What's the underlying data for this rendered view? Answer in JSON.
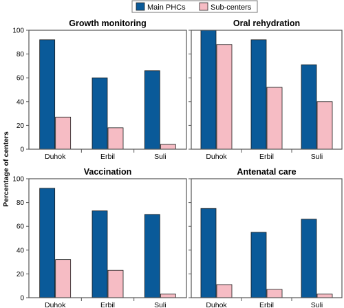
{
  "legend": {
    "main_label": "Main PHCs",
    "sub_label": "Sub-centers"
  },
  "colors": {
    "main": "#0a5a99",
    "sub": "#f6bcc4",
    "frame": "#555555"
  },
  "ylabel": "Percentage of centers",
  "chart_data": [
    {
      "type": "bar",
      "title": "Growth monitoring",
      "categories": [
        "Duhok",
        "Erbil",
        "Suli"
      ],
      "series": [
        {
          "name": "Main PHCs",
          "values": [
            92,
            60,
            66
          ]
        },
        {
          "name": "Sub-centers",
          "values": [
            27,
            18,
            4
          ]
        }
      ],
      "ylim": [
        0,
        100
      ],
      "yticks": [
        0,
        20,
        40,
        60,
        80,
        100
      ]
    },
    {
      "type": "bar",
      "title": "Oral rehydration",
      "categories": [
        "Duhok",
        "Erbil",
        "Suli"
      ],
      "series": [
        {
          "name": "Main PHCs",
          "values": [
            100,
            92,
            71
          ]
        },
        {
          "name": "Sub-centers",
          "values": [
            88,
            52,
            40
          ]
        }
      ],
      "ylim": [
        0,
        100
      ],
      "yticks": [
        0,
        20,
        40,
        60,
        80,
        100
      ]
    },
    {
      "type": "bar",
      "title": "Vaccination",
      "categories": [
        "Duhok",
        "Erbil",
        "Suli"
      ],
      "series": [
        {
          "name": "Main PHCs",
          "values": [
            92,
            73,
            70
          ]
        },
        {
          "name": "Sub-centers",
          "values": [
            32,
            23,
            3
          ]
        }
      ],
      "ylim": [
        0,
        100
      ],
      "yticks": [
        0,
        20,
        40,
        60,
        80,
        100
      ]
    },
    {
      "type": "bar",
      "title": "Antenatal care",
      "categories": [
        "Duhok",
        "Erbil",
        "Suli"
      ],
      "series": [
        {
          "name": "Main PHCs",
          "values": [
            75,
            55,
            66
          ]
        },
        {
          "name": "Sub-centers",
          "values": [
            11,
            7,
            3
          ]
        }
      ],
      "ylim": [
        0,
        100
      ],
      "yticks": [
        0,
        20,
        40,
        60,
        80,
        100
      ]
    }
  ]
}
